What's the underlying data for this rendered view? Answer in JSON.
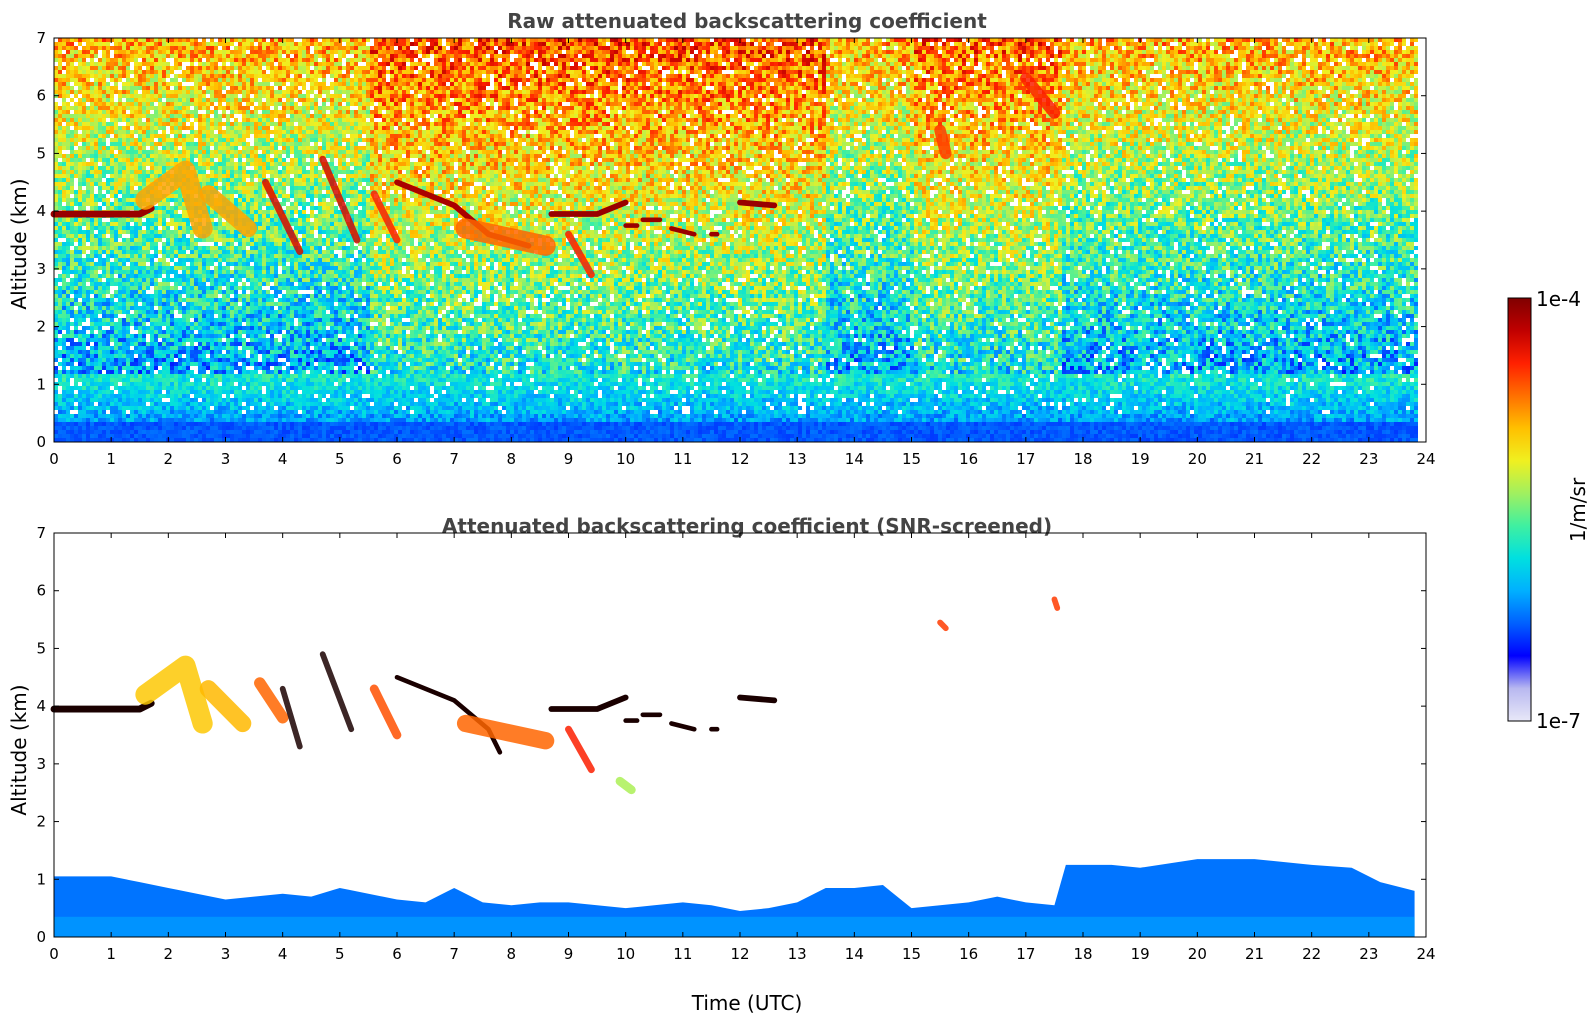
{
  "chart_data": [
    {
      "type": "heatmap",
      "title": "Raw attenuated backscattering coefficient",
      "xlabel": "",
      "ylabel": "Altitude (km)",
      "xlim": [
        0,
        24
      ],
      "ylim": [
        0,
        7
      ],
      "x_ticks": [
        "0",
        "1",
        "2",
        "3",
        "4",
        "5",
        "6",
        "7",
        "8",
        "9",
        "10",
        "11",
        "12",
        "13",
        "14",
        "15",
        "16",
        "17",
        "18",
        "19",
        "20",
        "21",
        "22",
        "23",
        "24"
      ],
      "y_ticks": [
        "0",
        "1",
        "2",
        "3",
        "4",
        "5",
        "6",
        "7"
      ],
      "data_end_time": 23.8,
      "screened": false,
      "features": [
        {
          "kind": "cloud_layer",
          "points": [
            [
              0,
              3.95
            ],
            [
              1.5,
              3.95
            ],
            [
              1.7,
              4.05
            ]
          ],
          "level": 0.97,
          "width_km": 0.12
        },
        {
          "kind": "fall_streak",
          "points": [
            [
              1.6,
              4.2
            ],
            [
              2.3,
              4.7
            ],
            [
              2.6,
              3.7
            ]
          ],
          "level": 0.72,
          "width_km": 0.35
        },
        {
          "kind": "fall_streak",
          "points": [
            [
              2.7,
              4.3
            ],
            [
              3.4,
              3.7
            ]
          ],
          "level": 0.72,
          "width_km": 0.3
        },
        {
          "kind": "fall_streak",
          "points": [
            [
              3.7,
              4.5
            ],
            [
              4.3,
              3.3
            ]
          ],
          "level": 0.9,
          "width_km": 0.12
        },
        {
          "kind": "fall_streak",
          "points": [
            [
              4.7,
              4.9
            ],
            [
              5.3,
              3.5
            ]
          ],
          "level": 0.9,
          "width_km": 0.12
        },
        {
          "kind": "fall_streak",
          "points": [
            [
              5.6,
              4.3
            ],
            [
              6.0,
              3.5
            ]
          ],
          "level": 0.85,
          "width_km": 0.12
        },
        {
          "kind": "cloud_layer",
          "points": [
            [
              6.0,
              4.5
            ],
            [
              7.0,
              4.1
            ],
            [
              7.6,
              3.6
            ],
            [
              8.3,
              3.4
            ]
          ],
          "level": 0.95,
          "width_km": 0.1
        },
        {
          "kind": "fall_streak",
          "points": [
            [
              7.2,
              3.7
            ],
            [
              8.6,
              3.4
            ]
          ],
          "level": 0.78,
          "width_km": 0.35
        },
        {
          "kind": "fall_streak",
          "points": [
            [
              9.0,
              3.6
            ],
            [
              9.4,
              2.9
            ]
          ],
          "level": 0.85,
          "width_km": 0.12
        },
        {
          "kind": "cloud_layer",
          "points": [
            [
              8.7,
              3.95
            ],
            [
              9.5,
              3.95
            ],
            [
              10.0,
              4.15
            ]
          ],
          "level": 0.97,
          "width_km": 0.1
        },
        {
          "kind": "cloud_layer",
          "points": [
            [
              10.0,
              3.75
            ],
            [
              10.2,
              3.75
            ]
          ],
          "level": 0.97,
          "width_km": 0.08
        },
        {
          "kind": "cloud_layer",
          "points": [
            [
              10.3,
              3.85
            ],
            [
              10.6,
              3.85
            ]
          ],
          "level": 0.97,
          "width_km": 0.08
        },
        {
          "kind": "cloud_layer",
          "points": [
            [
              10.8,
              3.7
            ],
            [
              11.2,
              3.6
            ]
          ],
          "level": 0.97,
          "width_km": 0.08
        },
        {
          "kind": "cloud_layer",
          "points": [
            [
              11.5,
              3.6
            ],
            [
              11.6,
              3.6
            ]
          ],
          "level": 0.97,
          "width_km": 0.08
        },
        {
          "kind": "cloud_layer",
          "points": [
            [
              12.0,
              4.15
            ],
            [
              12.6,
              4.1
            ]
          ],
          "level": 0.97,
          "width_km": 0.1
        },
        {
          "kind": "fall_streak",
          "points": [
            [
              15.5,
              5.4
            ],
            [
              15.6,
              5.0
            ]
          ],
          "level": 0.82,
          "width_km": 0.2
        },
        {
          "kind": "fall_streak",
          "points": [
            [
              17.0,
              6.3
            ],
            [
              17.5,
              5.7
            ]
          ],
          "level": 0.85,
          "width_km": 0.2
        }
      ]
    },
    {
      "type": "heatmap",
      "title": "Attenuated backscattering coefficient (SNR-screened)",
      "xlabel": "Time (UTC)",
      "ylabel": "Altitude (km)",
      "xlim": [
        0,
        24
      ],
      "ylim": [
        0,
        7
      ],
      "x_ticks": [
        "0",
        "1",
        "2",
        "3",
        "4",
        "5",
        "6",
        "7",
        "8",
        "9",
        "10",
        "11",
        "12",
        "13",
        "14",
        "15",
        "16",
        "17",
        "18",
        "19",
        "20",
        "21",
        "22",
        "23",
        "24"
      ],
      "y_ticks": [
        "0",
        "1",
        "2",
        "3",
        "4",
        "5",
        "6",
        "7"
      ],
      "data_end_time": 23.8,
      "screened": true,
      "boundary_layer_top_km": [
        [
          0,
          1.05
        ],
        [
          1,
          1.05
        ],
        [
          1.5,
          0.95
        ],
        [
          2,
          0.85
        ],
        [
          2.5,
          0.75
        ],
        [
          3,
          0.65
        ],
        [
          3.5,
          0.7
        ],
        [
          4,
          0.75
        ],
        [
          4.5,
          0.7
        ],
        [
          5,
          0.85
        ],
        [
          5.5,
          0.75
        ],
        [
          6,
          0.65
        ],
        [
          6.5,
          0.6
        ],
        [
          7,
          0.85
        ],
        [
          7.5,
          0.6
        ],
        [
          8,
          0.55
        ],
        [
          8.5,
          0.6
        ],
        [
          9,
          0.6
        ],
        [
          9.5,
          0.55
        ],
        [
          10,
          0.5
        ],
        [
          10.5,
          0.55
        ],
        [
          11,
          0.6
        ],
        [
          11.5,
          0.55
        ],
        [
          12,
          0.45
        ],
        [
          12.5,
          0.5
        ],
        [
          13,
          0.6
        ],
        [
          13.5,
          0.85
        ],
        [
          14,
          0.85
        ],
        [
          14.5,
          0.9
        ],
        [
          15,
          0.5
        ],
        [
          15.5,
          0.55
        ],
        [
          16,
          0.6
        ],
        [
          16.5,
          0.7
        ],
        [
          17,
          0.6
        ],
        [
          17.5,
          0.55
        ],
        [
          17.7,
          1.25
        ],
        [
          18.5,
          1.25
        ],
        [
          19,
          1.2
        ],
        [
          20,
          1.35
        ],
        [
          21,
          1.35
        ],
        [
          22,
          1.25
        ],
        [
          22.7,
          1.2
        ],
        [
          23.2,
          0.95
        ],
        [
          23.8,
          0.8
        ]
      ],
      "features": [
        {
          "kind": "cloud_layer",
          "points": [
            [
              0,
              3.95
            ],
            [
              1.5,
              3.95
            ],
            [
              1.7,
              4.05
            ]
          ],
          "level": 0.99,
          "width_km": 0.12
        },
        {
          "kind": "fall_streak",
          "points": [
            [
              1.6,
              4.2
            ],
            [
              2.3,
              4.7
            ],
            [
              2.6,
              3.7
            ]
          ],
          "level": 0.68,
          "width_km": 0.35
        },
        {
          "kind": "fall_streak",
          "points": [
            [
              2.7,
              4.3
            ],
            [
              3.3,
              3.7
            ]
          ],
          "level": 0.7,
          "width_km": 0.3
        },
        {
          "kind": "fall_streak",
          "points": [
            [
              3.6,
              4.4
            ],
            [
              4.0,
              3.8
            ]
          ],
          "level": 0.78,
          "width_km": 0.2
        },
        {
          "kind": "fall_streak",
          "points": [
            [
              4.0,
              4.3
            ],
            [
              4.3,
              3.3
            ]
          ],
          "level": 0.99,
          "width_km": 0.1
        },
        {
          "kind": "fall_streak",
          "points": [
            [
              4.7,
              4.9
            ],
            [
              5.2,
              3.6
            ]
          ],
          "level": 0.99,
          "width_km": 0.1
        },
        {
          "kind": "fall_streak",
          "points": [
            [
              5.6,
              4.3
            ],
            [
              6.0,
              3.5
            ]
          ],
          "level": 0.8,
          "width_km": 0.15
        },
        {
          "kind": "cloud_layer",
          "points": [
            [
              6.0,
              4.5
            ],
            [
              7.0,
              4.1
            ],
            [
              7.6,
              3.6
            ],
            [
              7.8,
              3.2
            ]
          ],
          "level": 0.99,
          "width_km": 0.08
        },
        {
          "kind": "fall_streak",
          "points": [
            [
              7.2,
              3.7
            ],
            [
              8.6,
              3.4
            ]
          ],
          "level": 0.78,
          "width_km": 0.3
        },
        {
          "kind": "fall_streak",
          "points": [
            [
              9.0,
              3.6
            ],
            [
              9.4,
              2.9
            ]
          ],
          "level": 0.85,
          "width_km": 0.12
        },
        {
          "kind": "cloud_layer",
          "points": [
            [
              8.7,
              3.95
            ],
            [
              9.5,
              3.95
            ],
            [
              10.0,
              4.15
            ]
          ],
          "level": 0.99,
          "width_km": 0.1
        },
        {
          "kind": "cloud_layer",
          "points": [
            [
              10.0,
              3.75
            ],
            [
              10.2,
              3.75
            ]
          ],
          "level": 0.99,
          "width_km": 0.08
        },
        {
          "kind": "cloud_layer",
          "points": [
            [
              10.3,
              3.85
            ],
            [
              10.6,
              3.85
            ]
          ],
          "level": 0.99,
          "width_km": 0.08
        },
        {
          "kind": "cloud_layer",
          "points": [
            [
              10.8,
              3.7
            ],
            [
              11.2,
              3.6
            ]
          ],
          "level": 0.99,
          "width_km": 0.08
        },
        {
          "kind": "cloud_layer",
          "points": [
            [
              11.5,
              3.6
            ],
            [
              11.6,
              3.6
            ]
          ],
          "level": 0.99,
          "width_km": 0.08
        },
        {
          "kind": "cloud_layer",
          "points": [
            [
              12.0,
              4.15
            ],
            [
              12.6,
              4.1
            ]
          ],
          "level": 0.99,
          "width_km": 0.1
        },
        {
          "kind": "fall_streak",
          "points": [
            [
              9.9,
              2.7
            ],
            [
              10.1,
              2.55
            ]
          ],
          "level": 0.55,
          "width_km": 0.15
        },
        {
          "kind": "fall_streak",
          "points": [
            [
              15.5,
              5.45
            ],
            [
              15.6,
              5.35
            ]
          ],
          "level": 0.82,
          "width_km": 0.1
        },
        {
          "kind": "fall_streak",
          "points": [
            [
              17.5,
              5.85
            ],
            [
              17.55,
              5.7
            ]
          ],
          "level": 0.82,
          "width_km": 0.1
        }
      ]
    }
  ],
  "colorbar": {
    "label": "1/m/sr",
    "max_label": "1e-4",
    "min_label": "1e-7",
    "scale": "log",
    "range": [
      1e-07,
      0.0001
    ],
    "colormap": [
      "#e8e8f8",
      "#b8b8f0",
      "#0000ff",
      "#0060ff",
      "#00b0ff",
      "#00e0e0",
      "#40f0a0",
      "#a0f060",
      "#f0f020",
      "#ffc000",
      "#ff7000",
      "#ff2000",
      "#c00000",
      "#800000"
    ]
  }
}
